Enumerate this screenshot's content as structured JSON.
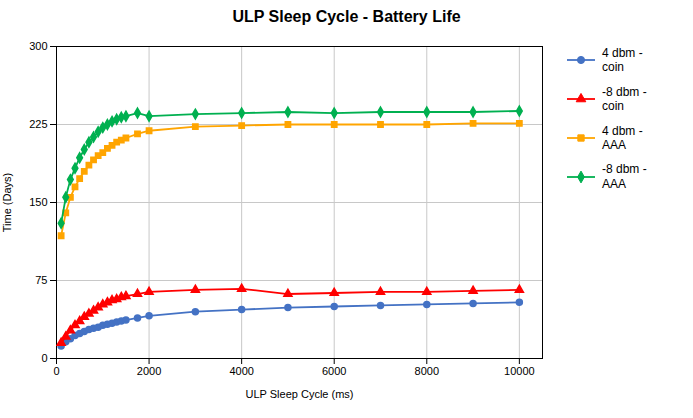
{
  "chart_data": {
    "type": "line",
    "title": "ULP Sleep Cycle - Battery Life",
    "xlabel": "ULP Sleep Cycle (ms)",
    "ylabel": "Time (Days)",
    "xlim": [
      0,
      10500
    ],
    "ylim": [
      0,
      300
    ],
    "xticks": [
      0,
      2000,
      4000,
      6000,
      8000,
      10000
    ],
    "yticks": [
      0,
      75,
      150,
      225,
      300
    ],
    "grid": true,
    "legend": "right",
    "x": [
      100,
      200,
      300,
      400,
      500,
      600,
      700,
      800,
      900,
      1000,
      1100,
      1200,
      1300,
      1400,
      1500,
      1750,
      2000,
      3000,
      4000,
      5000,
      6000,
      7000,
      8000,
      9000,
      10000
    ],
    "series": [
      {
        "name": "4 dbm -\ncoin",
        "color": "#4472C4",
        "marker": "circle",
        "values": [
          12,
          16,
          19,
          22,
          24,
          26,
          28,
          29,
          30,
          32,
          33,
          34,
          35,
          36,
          37,
          39,
          41,
          45,
          47,
          49,
          50,
          51,
          52,
          53,
          54
        ]
      },
      {
        "name": "-8 dbm -\ncoin",
        "color": "#FF0000",
        "marker": "triangle",
        "values": [
          15,
          21,
          27,
          32,
          36,
          40,
          43,
          46,
          49,
          52,
          54,
          56,
          57,
          59,
          60,
          62,
          64,
          66,
          67,
          62,
          63,
          64,
          64,
          65,
          66
        ]
      },
      {
        "name": "4 dbm -\nAAA",
        "color": "#FFA500",
        "marker": "square",
        "values": [
          118,
          140,
          155,
          165,
          173,
          180,
          186,
          191,
          195,
          198,
          202,
          205,
          208,
          210,
          212,
          216,
          219,
          223,
          224,
          225,
          225,
          225,
          225,
          226,
          226
        ]
      },
      {
        "name": "-8 dbm -\nAAA",
        "color": "#00B050",
        "marker": "diamond",
        "values": [
          130,
          155,
          172,
          183,
          193,
          201,
          208,
          213,
          218,
          222,
          225,
          228,
          230,
          232,
          233,
          236,
          233,
          235,
          236,
          237,
          236,
          237,
          237,
          237,
          238
        ]
      }
    ]
  }
}
